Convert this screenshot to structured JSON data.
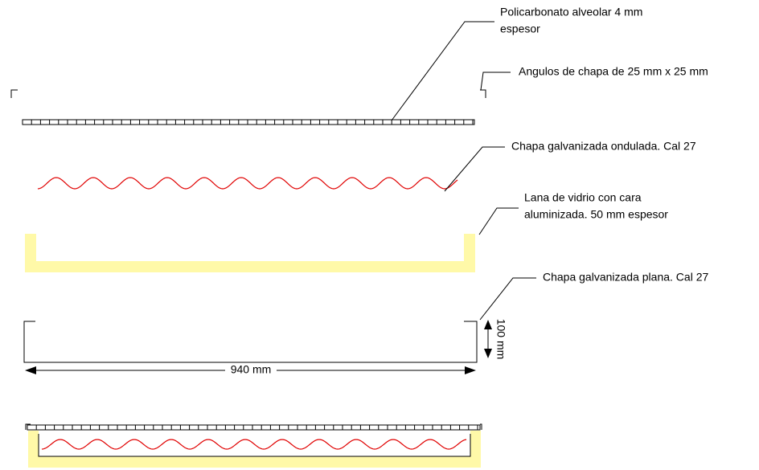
{
  "labels": [
    {
      "lines": [
        "Policarbonato alveolar 4 mm",
        "espesor"
      ]
    },
    {
      "lines": [
        "Angulos de chapa de 25 mm x 25 mm"
      ]
    },
    {
      "lines": [
        "Chapa galvanizada ondulada. Cal 27"
      ]
    },
    {
      "lines": [
        "Lana de vidrio con cara",
        "aluminizada. 50 mm espesor"
      ]
    },
    {
      "lines": [
        "Chapa galvanizada plana. Cal 27"
      ]
    }
  ],
  "dimensions": {
    "width": "940 mm",
    "height": "100 mm"
  }
}
